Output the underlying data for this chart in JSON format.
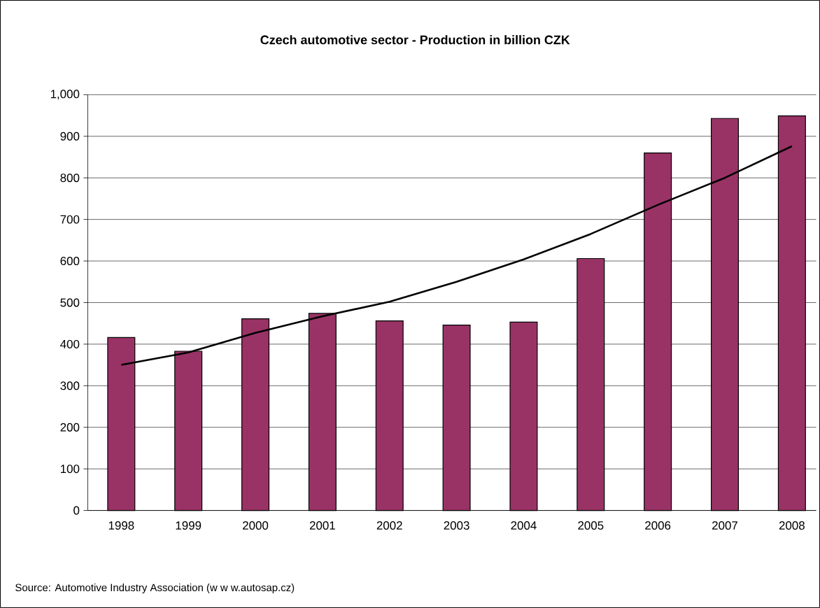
{
  "chart_data": {
    "type": "bar",
    "title": "Czech automotive sector - Production in billion CZK",
    "categories": [
      "1998",
      "1999",
      "2000",
      "2001",
      "2002",
      "2003",
      "2004",
      "2005",
      "2006",
      "2007",
      "2008"
    ],
    "series": [
      {
        "color": "#993366",
        "values": [
          416,
          383,
          461,
          474,
          456,
          446,
          453,
          606,
          860,
          943,
          949
        ]
      },
      {
        "type": "line",
        "color": "#000000",
        "values": [
          350,
          380,
          427,
          467,
          502,
          550,
          604,
          665,
          735,
          800,
          876
        ]
      }
    ],
    "ylim": [
      0,
      1000
    ],
    "yticks": [
      0,
      100,
      200,
      300,
      400,
      500,
      600,
      700,
      800,
      900,
      {
        "value": 1000,
        "label": "1,000"
      }
    ],
    "grid": "y",
    "marker": "none",
    "line_style": "solid",
    "annotations": [
      "Source: Automotive Industry Association (w w w.autosap.cz)"
    ]
  }
}
